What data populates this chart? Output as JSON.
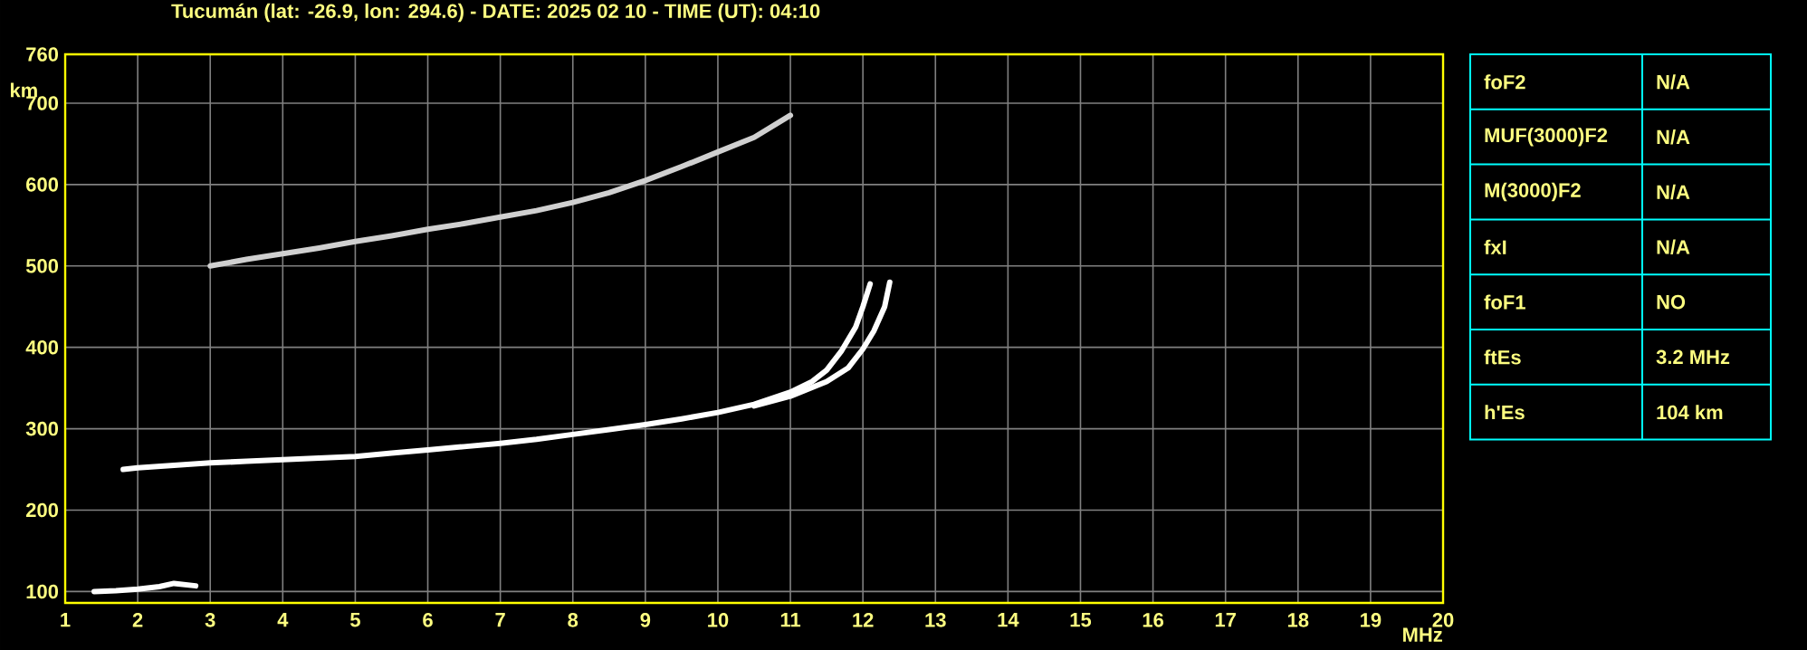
{
  "chart_data": [
    {
      "type": "line",
      "title": "Tucumán (lat: -26.9, lon: 294.6) - DATE: 2025 02 10 - TIME (UT): 04:10",
      "xlabel": "MHz",
      "ylabel": "km",
      "xlim": [
        1,
        20
      ],
      "ylim": [
        86,
        760
      ],
      "xticks": [
        1,
        2,
        3,
        4,
        5,
        6,
        7,
        8,
        9,
        10,
        11,
        12,
        13,
        14,
        15,
        16,
        17,
        18,
        19,
        20
      ],
      "yticks": [
        100,
        200,
        300,
        400,
        500,
        600,
        700,
        760
      ],
      "grid": true,
      "marker": "none",
      "line_style": "solid",
      "series": [
        {
          "color": "#ffffff",
          "x": [
            1.8,
            2,
            2.5,
            3,
            3.5,
            4,
            4.5,
            5,
            5.5,
            6,
            6.5,
            7,
            7.5,
            8,
            8.5,
            9,
            9.5,
            10,
            10.5,
            11,
            11.3,
            11.5,
            11.7,
            11.9,
            12.0,
            12.1
          ],
          "values": [
            250,
            252,
            255,
            258,
            260,
            262,
            264,
            266,
            270,
            274,
            278,
            282,
            287,
            293,
            299,
            305,
            312,
            320,
            330,
            345,
            358,
            372,
            395,
            425,
            450,
            478
          ]
        },
        {
          "color": "#ffffff",
          "x": [
            10.5,
            11,
            11.5,
            11.8,
            12.0,
            12.15,
            12.3,
            12.37
          ],
          "values": [
            328,
            340,
            358,
            375,
            398,
            420,
            450,
            480
          ]
        },
        {
          "color": "#d0d0d0",
          "x": [
            3,
            3.5,
            4,
            4.5,
            5,
            5.5,
            6,
            6.5,
            7,
            7.5,
            8,
            8.5,
            9,
            9.5,
            10,
            10.5,
            11
          ],
          "values": [
            500,
            508,
            515,
            522,
            530,
            537,
            545,
            552,
            560,
            568,
            578,
            590,
            605,
            622,
            640,
            658,
            685
          ]
        },
        {
          "color": "#ffffff",
          "x": [
            1.4,
            1.7,
            2,
            2.3,
            2.5,
            2.8
          ],
          "values": [
            100,
            101,
            103,
            106,
            110,
            107
          ]
        }
      ]
    },
    {
      "type": "other",
      "annotations": [
        "foF2",
        "N/A",
        "MUF(3000)F2",
        "N/A",
        "M(3000)F2",
        "N/A",
        "fxI",
        "N/A",
        "foF1",
        "NO",
        "ftEs",
        "3.2 MHz",
        "h'Es",
        "104 km"
      ]
    }
  ]
}
